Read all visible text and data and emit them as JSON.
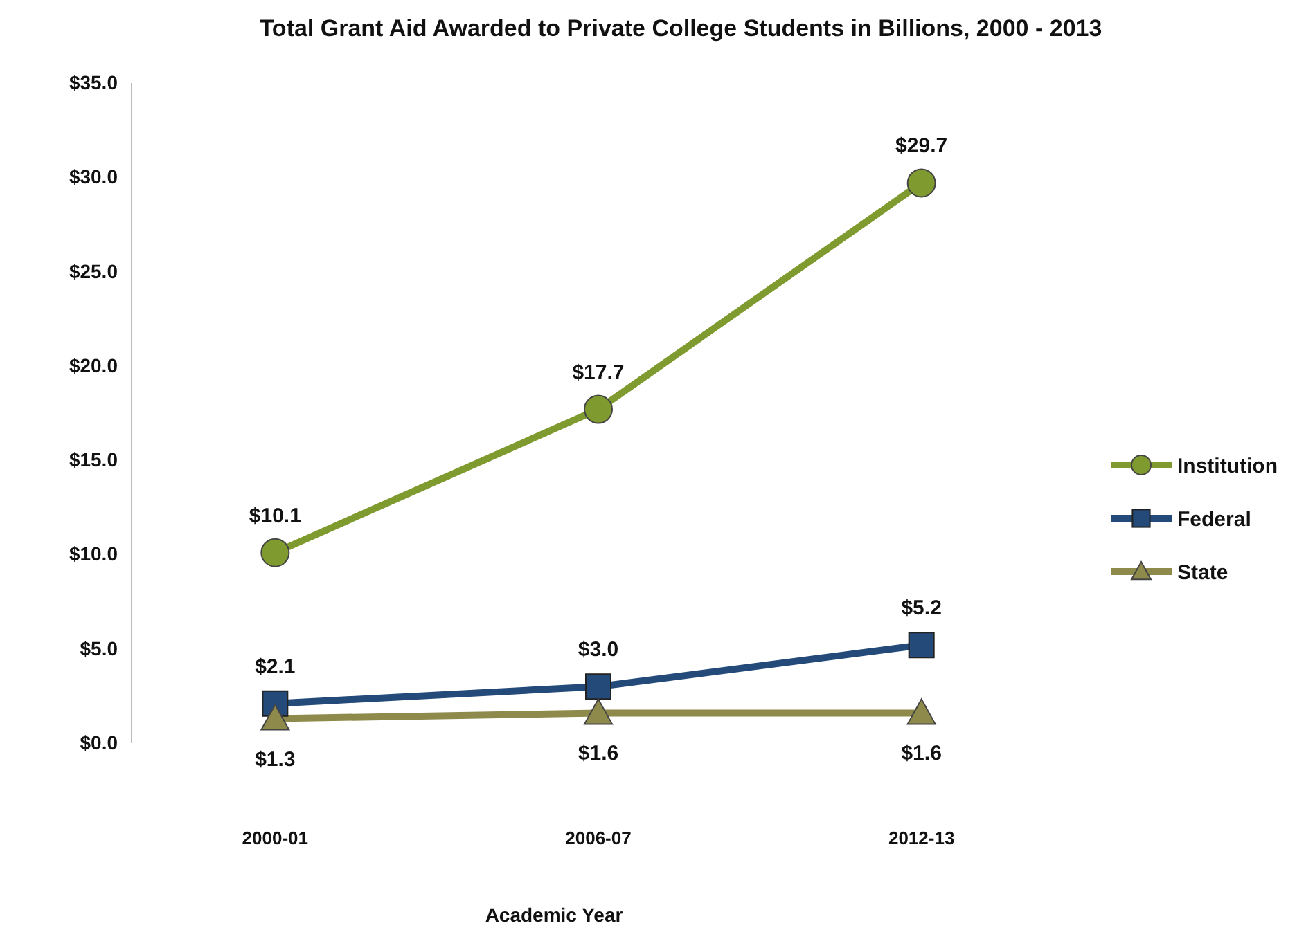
{
  "chart_data": {
    "type": "line",
    "title": "Total Grant Aid Awarded to Private College Students in Billions, 2000 - 2013",
    "xlabel": "Academic Year",
    "categories": [
      "2000-01",
      "2006-07",
      "2012-13"
    ],
    "series": [
      {
        "name": "Institution",
        "color": "#7f9b2f",
        "marker": "circle",
        "values": [
          10.1,
          17.7,
          29.7
        ],
        "value_labels": [
          "$10.1",
          "$17.7",
          "$29.7"
        ]
      },
      {
        "name": "Federal",
        "color": "#244a7a",
        "marker": "square",
        "values": [
          2.1,
          3.0,
          5.2
        ],
        "value_labels": [
          "$2.1",
          "$3.0",
          "$5.2"
        ]
      },
      {
        "name": "State",
        "color": "#8e8a4c",
        "marker": "triangle",
        "values": [
          1.3,
          1.6,
          1.6
        ],
        "value_labels": [
          "$1.3",
          "$1.6",
          "$1.6"
        ]
      }
    ],
    "ylim": [
      0,
      35
    ],
    "yticks": [
      {
        "value": 0,
        "label": "$0.0"
      },
      {
        "value": 5,
        "label": "$5.0"
      },
      {
        "value": 10,
        "label": "$10.0"
      },
      {
        "value": 15,
        "label": "$15.0"
      },
      {
        "value": 20,
        "label": "$20.0"
      },
      {
        "value": 25,
        "label": "$25.0"
      },
      {
        "value": 30,
        "label": "$30.0"
      },
      {
        "value": 35,
        "label": "$35.0"
      }
    ],
    "grid": false,
    "legend": "right",
    "line_style": "solid"
  }
}
